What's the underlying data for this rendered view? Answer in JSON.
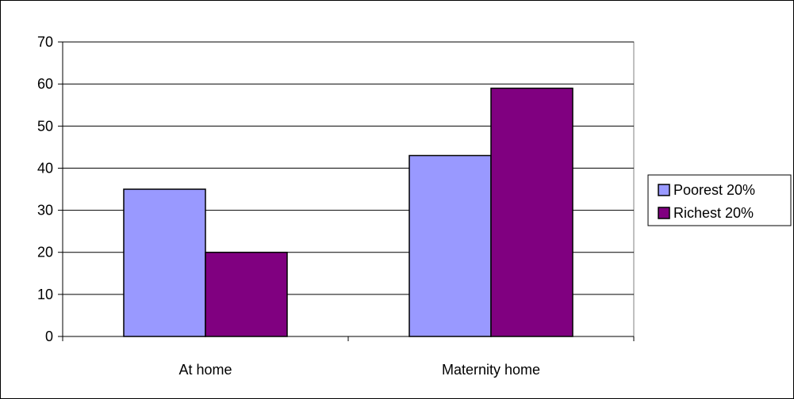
{
  "chart_data": {
    "type": "bar",
    "title": "",
    "xlabel": "",
    "ylabel": "",
    "categories": [
      "At home",
      "Maternity home"
    ],
    "series": [
      {
        "name": "Poorest 20%",
        "values": [
          35,
          43
        ],
        "color": "#9999ff"
      },
      {
        "name": "Richest 20%",
        "values": [
          20,
          59
        ],
        "color": "#800080"
      }
    ],
    "ylim": [
      0,
      70
    ],
    "yticks": [
      0,
      10,
      20,
      30,
      40,
      50,
      60,
      70
    ],
    "grid": true,
    "legend": "right",
    "plot_background": "#ffffff",
    "grid_color": "#000000"
  }
}
